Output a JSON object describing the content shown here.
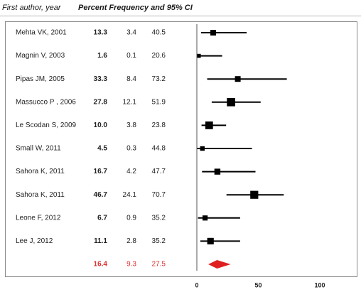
{
  "header": {
    "author_label": "First author, year",
    "metric_label": "Percent Frequency and 95% CI"
  },
  "colors": {
    "marker": "#000000",
    "pooled": "#e02020",
    "axis": "#555555",
    "frame": "#8a8a8a"
  },
  "chart_data": {
    "type": "forest",
    "rows": [
      {
        "study": "Mehta VK, 2001",
        "estimate": 13.3,
        "lower": 3.4,
        "upper": 40.5,
        "weight": 1.0
      },
      {
        "study": "Magnin V, 2003",
        "estimate": 1.6,
        "lower": 0.1,
        "upper": 20.6,
        "weight": 0.7
      },
      {
        "study": "Pipas JM, 2005",
        "estimate": 33.3,
        "lower": 8.4,
        "upper": 73.2,
        "weight": 1.0
      },
      {
        "study": "Massucco P , 2006",
        "estimate": 27.8,
        "lower": 12.1,
        "upper": 51.9,
        "weight": 1.45
      },
      {
        "study": "Le Scodan S, 2009",
        "estimate": 10.0,
        "lower": 3.8,
        "upper": 23.8,
        "weight": 1.35
      },
      {
        "study": "Small W, 2011",
        "estimate": 4.5,
        "lower": 0.3,
        "upper": 44.8,
        "weight": 0.8
      },
      {
        "study": "Sahora K, 2011",
        "estimate": 16.7,
        "lower": 4.2,
        "upper": 47.7,
        "weight": 1.05
      },
      {
        "study": "Sahora K, 2011",
        "estimate": 46.7,
        "lower": 24.1,
        "upper": 70.7,
        "weight": 1.4
      },
      {
        "study": "Leone F, 2012",
        "estimate": 6.7,
        "lower": 0.9,
        "upper": 35.2,
        "weight": 0.9
      },
      {
        "study": "Lee J, 2012",
        "estimate": 11.1,
        "lower": 2.8,
        "upper": 35.2,
        "weight": 1.15
      }
    ],
    "pooled": {
      "estimate": 16.4,
      "lower": 9.3,
      "upper": 27.5
    },
    "xlim": [
      0,
      100
    ],
    "xticks": [
      0,
      50,
      100
    ],
    "grid": false
  }
}
